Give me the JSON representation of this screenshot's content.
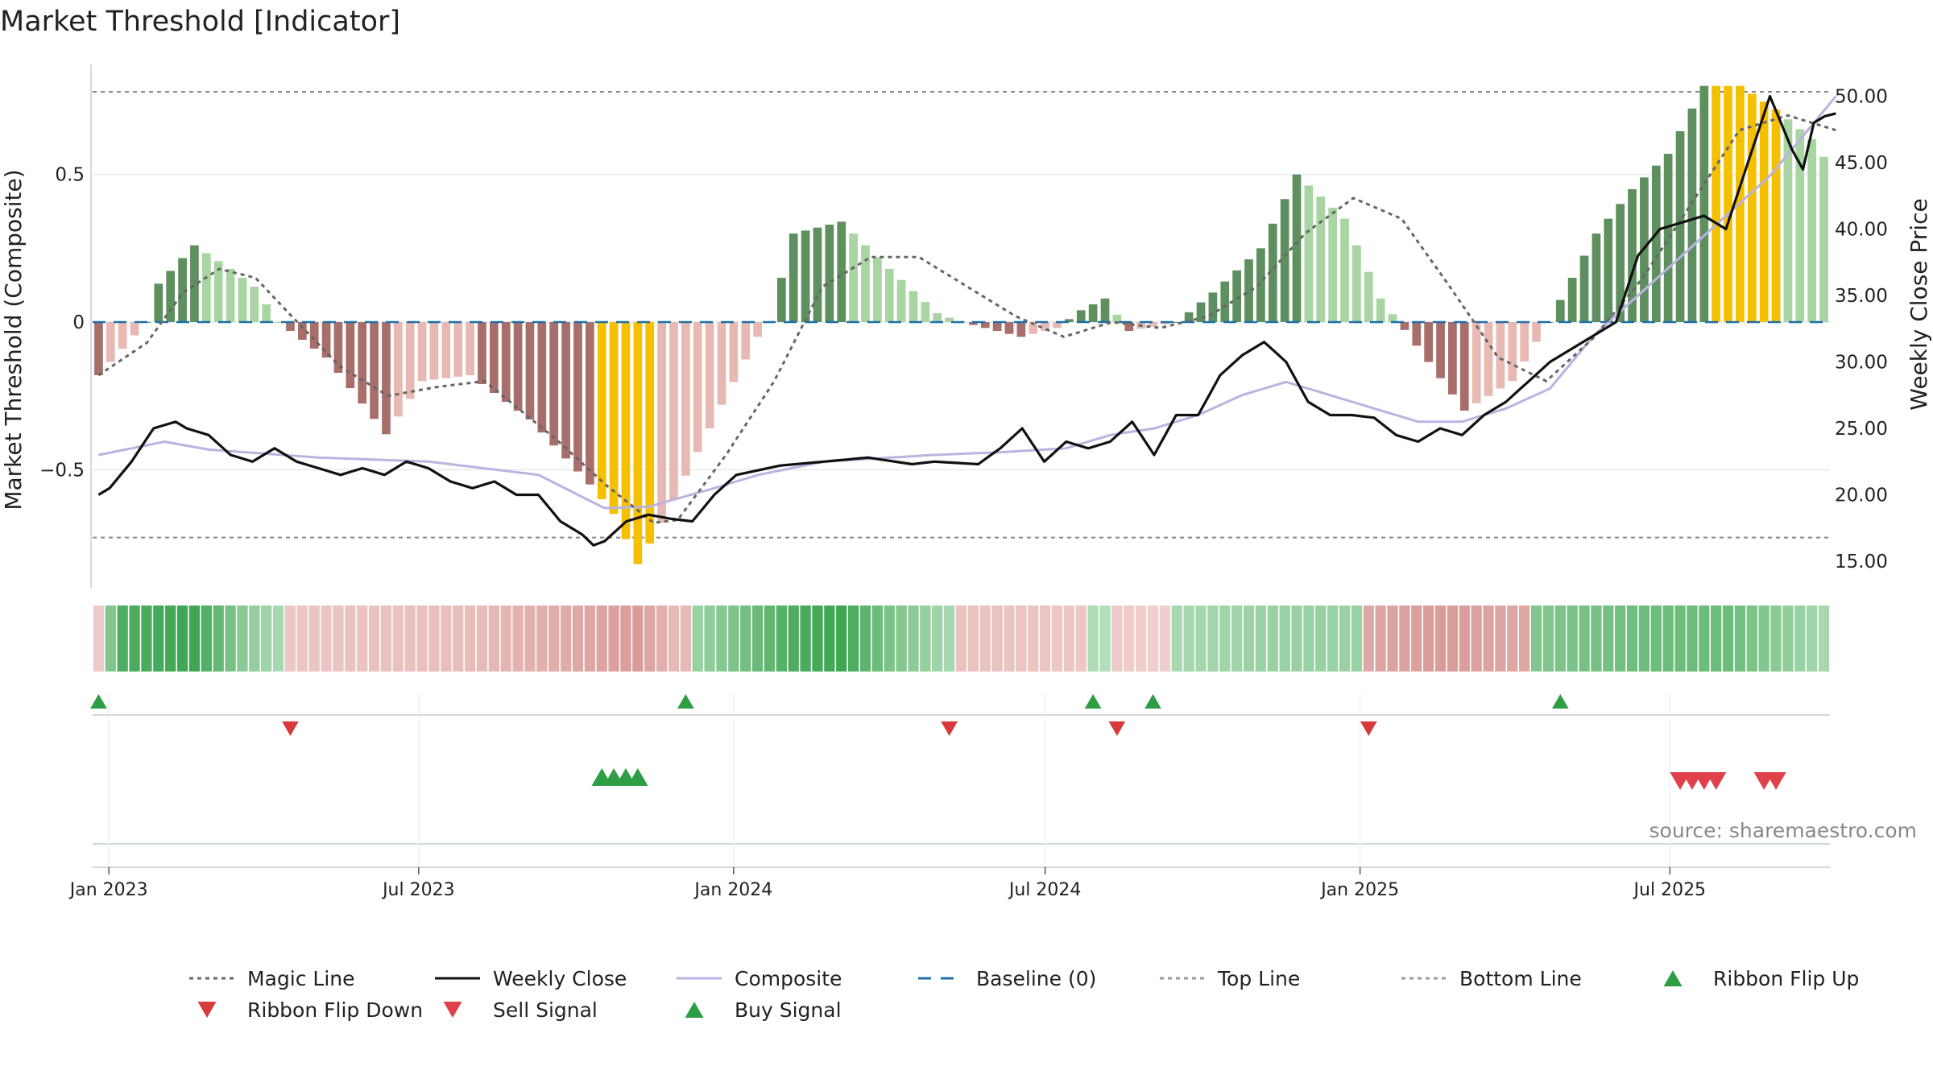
{
  "title": "Market Threshold [Indicator]",
  "source": "source: sharemaestro.com",
  "colors": {
    "dark_green": "#5e8f5e",
    "light_green": "#a8d5a2",
    "dark_red": "#a86e6a",
    "light_red": "#e8b9b3",
    "yellow": "#f5c000",
    "close": "#111111",
    "composite": "#b9b4e0",
    "magic": "#666666",
    "baseline": "#1f6fa8",
    "buy": "#2e9e44",
    "sell": "#d63a3a"
  },
  "chart_data": {
    "type": "bar",
    "title": "Market Threshold [Indicator]",
    "ylabel_left": "Market Threshold (Composite)",
    "ylabel_right": "Weekly Close Price",
    "ylim_left": [
      -0.9,
      0.9
    ],
    "yticks_left": [
      {
        "v": 0.5,
        "label": "0.5"
      },
      {
        "v": 0,
        "label": "0"
      },
      {
        "v": -0.5,
        "label": "−0.5"
      }
    ],
    "ylim_right": [
      13,
      53
    ],
    "yticks_right": [
      {
        "v": 50,
        "label": "50.00"
      },
      {
        "v": 45,
        "label": "45.00"
      },
      {
        "v": 40,
        "label": "40.00"
      },
      {
        "v": 35,
        "label": "35.00"
      },
      {
        "v": 30,
        "label": "30.00"
      },
      {
        "v": 25,
        "label": "25.00"
      },
      {
        "v": 20,
        "label": "20.00"
      },
      {
        "v": 15,
        "label": "15.00"
      }
    ],
    "top_line": 0.78,
    "bottom_line": -0.73,
    "x_start": "2022-12-26",
    "weeks": 145,
    "xticks": [
      {
        "date": "2023-01-01",
        "label": "Jan 2023"
      },
      {
        "date": "2023-07-01",
        "label": "Jul 2023"
      },
      {
        "date": "2024-01-01",
        "label": "Jan 2024"
      },
      {
        "date": "2024-07-01",
        "label": "Jul 2024"
      },
      {
        "date": "2025-01-01",
        "label": "Jan 2025"
      },
      {
        "date": "2025-07-01",
        "label": "Jul 2025"
      }
    ],
    "histogram_keys": [
      [
        0,
        -0.18
      ],
      [
        4,
        0
      ],
      [
        5,
        0.13
      ],
      [
        8,
        0.26
      ],
      [
        11,
        0.18
      ],
      [
        13,
        0.12
      ],
      [
        15,
        0
      ],
      [
        19,
        -0.12
      ],
      [
        24,
        -0.38
      ],
      [
        27,
        -0.2
      ],
      [
        31,
        -0.18
      ],
      [
        36,
        -0.33
      ],
      [
        41,
        -0.55
      ],
      [
        43,
        -0.65
      ],
      [
        45,
        -0.82
      ],
      [
        47,
        -0.68
      ],
      [
        52,
        -0.28
      ],
      [
        55,
        -0.05
      ],
      [
        56,
        0
      ],
      [
        58,
        0.3
      ],
      [
        62,
        0.34
      ],
      [
        66,
        0.18
      ],
      [
        70,
        0.03
      ],
      [
        72,
        0
      ],
      [
        74,
        -0.02
      ],
      [
        77,
        -0.05
      ],
      [
        80,
        -0.02
      ],
      [
        82,
        0.04
      ],
      [
        84,
        0.08
      ],
      [
        86,
        -0.03
      ],
      [
        90,
        0
      ],
      [
        93,
        0.1
      ],
      [
        97,
        0.25
      ],
      [
        100,
        0.5
      ],
      [
        104,
        0.35
      ],
      [
        107,
        0.08
      ],
      [
        110,
        -0.08
      ],
      [
        114,
        -0.3
      ],
      [
        118,
        -0.2
      ],
      [
        121,
        0
      ],
      [
        125,
        0.3
      ],
      [
        128,
        0.45
      ],
      [
        131,
        0.57
      ],
      [
        134,
        0.8
      ],
      [
        137,
        0.8
      ],
      [
        140,
        0.72
      ],
      [
        143,
        0.62
      ],
      [
        144,
        0.56
      ]
    ],
    "histogram_yellow": [
      42,
      43,
      44,
      45,
      46,
      135,
      136,
      137,
      138,
      139,
      140
    ],
    "close_keys": [
      [
        0,
        20
      ],
      [
        1,
        20.5
      ],
      [
        3,
        22.5
      ],
      [
        5,
        25
      ],
      [
        7,
        25.5
      ],
      [
        8,
        25
      ],
      [
        10,
        24.5
      ],
      [
        12,
        23
      ],
      [
        14,
        22.5
      ],
      [
        16,
        23.5
      ],
      [
        18,
        22.5
      ],
      [
        20,
        22
      ],
      [
        22,
        21.5
      ],
      [
        24,
        22
      ],
      [
        26,
        21.5
      ],
      [
        28,
        22.5
      ],
      [
        30,
        22
      ],
      [
        32,
        21
      ],
      [
        34,
        20.5
      ],
      [
        36,
        21
      ],
      [
        38,
        20
      ],
      [
        40,
        20
      ],
      [
        42,
        18
      ],
      [
        44,
        17
      ],
      [
        45,
        16.2
      ],
      [
        46,
        16.5
      ],
      [
        48,
        18
      ],
      [
        50,
        18.5
      ],
      [
        52,
        18.2
      ],
      [
        54,
        18
      ],
      [
        56,
        20
      ],
      [
        58,
        21.5
      ],
      [
        62,
        22.2
      ],
      [
        66,
        22.5
      ],
      [
        70,
        22.8
      ],
      [
        74,
        22.3
      ],
      [
        76,
        22.5
      ],
      [
        80,
        22.3
      ],
      [
        82,
        23.5
      ],
      [
        84,
        25
      ],
      [
        86,
        22.5
      ],
      [
        88,
        24
      ],
      [
        90,
        23.5
      ],
      [
        92,
        24
      ],
      [
        94,
        25.5
      ],
      [
        96,
        23
      ],
      [
        98,
        26
      ],
      [
        100,
        26
      ],
      [
        102,
        29
      ],
      [
        104,
        30.5
      ],
      [
        106,
        31.5
      ],
      [
        108,
        30
      ],
      [
        110,
        27
      ],
      [
        112,
        26
      ],
      [
        114,
        26
      ],
      [
        116,
        25.8
      ],
      [
        118,
        24.5
      ],
      [
        120,
        24
      ],
      [
        122,
        25
      ],
      [
        124,
        24.5
      ],
      [
        126,
        26
      ],
      [
        128,
        27
      ],
      [
        130,
        28.5
      ],
      [
        132,
        30
      ],
      [
        134,
        31
      ],
      [
        136,
        32
      ],
      [
        138,
        33
      ],
      [
        140,
        38
      ],
      [
        142,
        40
      ],
      [
        144,
        40.5
      ],
      [
        146,
        41
      ],
      [
        148,
        40
      ],
      [
        150,
        45
      ],
      [
        152,
        50
      ],
      [
        153,
        48
      ],
      [
        154,
        46
      ],
      [
        155,
        44.5
      ],
      [
        156,
        48
      ],
      [
        157,
        48.5
      ],
      [
        158,
        48.7
      ]
    ],
    "composite_keys": [
      [
        0,
        23
      ],
      [
        6,
        24
      ],
      [
        10,
        23.4
      ],
      [
        20,
        22.8
      ],
      [
        30,
        22.5
      ],
      [
        40,
        21.5
      ],
      [
        46,
        19
      ],
      [
        50,
        19.1
      ],
      [
        56,
        20.5
      ],
      [
        60,
        21.5
      ],
      [
        66,
        22.5
      ],
      [
        76,
        23
      ],
      [
        82,
        23.2
      ],
      [
        88,
        23.5
      ],
      [
        92,
        24.5
      ],
      [
        96,
        25
      ],
      [
        100,
        26
      ],
      [
        104,
        27.5
      ],
      [
        108,
        28.5
      ],
      [
        112,
        27.5
      ],
      [
        116,
        26.5
      ],
      [
        120,
        25.5
      ],
      [
        124,
        25.5
      ],
      [
        128,
        26.5
      ],
      [
        132,
        28
      ],
      [
        136,
        32
      ],
      [
        140,
        35
      ],
      [
        144,
        38
      ],
      [
        148,
        41
      ],
      [
        152,
        44
      ],
      [
        158,
        50
      ]
    ],
    "magic_keys": [
      [
        0,
        -0.18
      ],
      [
        4,
        -0.07
      ],
      [
        7,
        0.1
      ],
      [
        10,
        0.18
      ],
      [
        13,
        0.15
      ],
      [
        16,
        0.02
      ],
      [
        20,
        -0.15
      ],
      [
        24,
        -0.25
      ],
      [
        28,
        -0.22
      ],
      [
        32,
        -0.2
      ],
      [
        38,
        -0.4
      ],
      [
        42,
        -0.55
      ],
      [
        46,
        -0.68
      ],
      [
        48,
        -0.67
      ],
      [
        52,
        -0.45
      ],
      [
        56,
        -0.2
      ],
      [
        60,
        0.12
      ],
      [
        64,
        0.22
      ],
      [
        68,
        0.22
      ],
      [
        72,
        0.12
      ],
      [
        76,
        0.02
      ],
      [
        80,
        -0.05
      ],
      [
        84,
        0.0
      ],
      [
        88,
        -0.02
      ],
      [
        92,
        0.02
      ],
      [
        96,
        0.12
      ],
      [
        100,
        0.3
      ],
      [
        104,
        0.42
      ],
      [
        108,
        0.35
      ],
      [
        112,
        0.12
      ],
      [
        116,
        -0.12
      ],
      [
        120,
        -0.2
      ],
      [
        124,
        -0.05
      ],
      [
        128,
        0.15
      ],
      [
        132,
        0.4
      ],
      [
        136,
        0.65
      ],
      [
        140,
        0.7
      ],
      [
        144,
        0.65
      ]
    ],
    "ribbon": {
      "green_ranges": [
        [
          1,
          15
        ],
        [
          50,
          71
        ],
        [
          83,
          84
        ],
        [
          90,
          105
        ],
        [
          120,
          144
        ]
      ],
      "red_ranges": [
        [
          0,
          0
        ],
        [
          16,
          49
        ],
        [
          72,
          82
        ],
        [
          85,
          89
        ],
        [
          106,
          119
        ]
      ],
      "strength_keys": [
        [
          0,
          0.2
        ],
        [
          2,
          0.9
        ],
        [
          8,
          1.0
        ],
        [
          12,
          0.5
        ],
        [
          15,
          0.3
        ],
        [
          16,
          0.25
        ],
        [
          30,
          0.35
        ],
        [
          40,
          0.6
        ],
        [
          45,
          0.75
        ],
        [
          48,
          0.4
        ],
        [
          50,
          0.4
        ],
        [
          58,
          0.9
        ],
        [
          62,
          1.0
        ],
        [
          66,
          0.6
        ],
        [
          71,
          0.3
        ],
        [
          72,
          0.3
        ],
        [
          82,
          0.25
        ],
        [
          83,
          0.25
        ],
        [
          85,
          0.2
        ],
        [
          89,
          0.15
        ],
        [
          90,
          0.3
        ],
        [
          98,
          0.4
        ],
        [
          105,
          0.4
        ],
        [
          106,
          0.6
        ],
        [
          112,
          0.75
        ],
        [
          119,
          0.6
        ],
        [
          120,
          0.55
        ],
        [
          130,
          0.7
        ],
        [
          136,
          0.7
        ],
        [
          144,
          0.3
        ]
      ]
    },
    "ribbon_flip_up": [
      "2022-12-26",
      "2023-12-04",
      "2024-07-29",
      "2024-09-02",
      "2025-04-28"
    ],
    "ribbon_flip_down": [
      "2023-04-17",
      "2024-05-06",
      "2024-08-12",
      "2025-01-06"
    ],
    "buy_signals": [
      "2023-10-16",
      "2023-10-23",
      "2023-10-30",
      "2023-11-06"
    ],
    "sell_signals": [
      "2025-07-07",
      "2025-07-14",
      "2025-07-21",
      "2025-07-28",
      "2025-08-25",
      "2025-09-01"
    ]
  },
  "legend": [
    {
      "label": "Magic Line",
      "kind": "dotted-line",
      "color": "#666666"
    },
    {
      "label": "Weekly Close",
      "kind": "solid-line",
      "color": "#111111"
    },
    {
      "label": "Composite",
      "kind": "solid-line",
      "color": "#b9b4e0"
    },
    {
      "label": "Baseline (0)",
      "kind": "dashed-line",
      "color": "#1f6fa8"
    },
    {
      "label": "Top Line",
      "kind": "dotted-line",
      "color": "#999999"
    },
    {
      "label": "Bottom Line",
      "kind": "dotted-line",
      "color": "#999999"
    },
    {
      "label": "Ribbon Flip Up",
      "kind": "triangle-up",
      "color": "#2e9e44"
    },
    {
      "label": "Ribbon Flip Down",
      "kind": "triangle-down",
      "color": "#d63a3a"
    },
    {
      "label": "Sell Signal",
      "kind": "triangle-down",
      "color": "#e0404a"
    },
    {
      "label": "Buy Signal",
      "kind": "triangle-up",
      "color": "#2e9e44"
    }
  ]
}
